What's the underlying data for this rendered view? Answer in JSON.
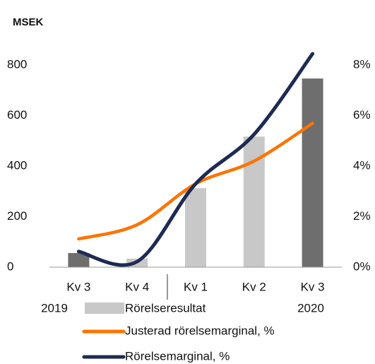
{
  "chart_data": {
    "type": "bar_line",
    "title": "MSEK",
    "categories": [
      "Kv 3",
      "Kv 4",
      "Kv 1",
      "Kv 2",
      "Kv 3"
    ],
    "year_labels": [
      "2019",
      "2020"
    ],
    "ylim": [
      0,
      890
    ],
    "yticks": [
      0,
      200,
      400,
      600,
      800
    ],
    "y2lim": [
      0,
      8.9
    ],
    "y2ticks": [
      {
        "value": 0,
        "label": "0%"
      },
      {
        "value": 2,
        "label": "2%"
      },
      {
        "value": 4,
        "label": "4%"
      },
      {
        "value": 6,
        "label": "6%"
      },
      {
        "value": 8,
        "label": "8%"
      }
    ],
    "series": [
      {
        "name": "Rörelseresultat",
        "type": "bar",
        "color": "#c8c8c8",
        "colors": [
          "#6e6e6e",
          "#c8c8c8",
          "#c8c8c8",
          "#c8c8c8",
          "#6e6e6e"
        ],
        "values": [
          56,
          34,
          313,
          517,
          747
        ]
      },
      {
        "name": "Justerad rörelsemarginal, %",
        "type": "line",
        "axis": "y2",
        "color": "#ff7300",
        "values": [
          1.12,
          1.68,
          3.3,
          4.2,
          5.7
        ]
      },
      {
        "name": "Rörelsemarginal, %",
        "type": "line",
        "axis": "y2",
        "color": "#1e2a52",
        "values": [
          0.62,
          0.22,
          3.3,
          5.26,
          8.45
        ]
      }
    ]
  }
}
